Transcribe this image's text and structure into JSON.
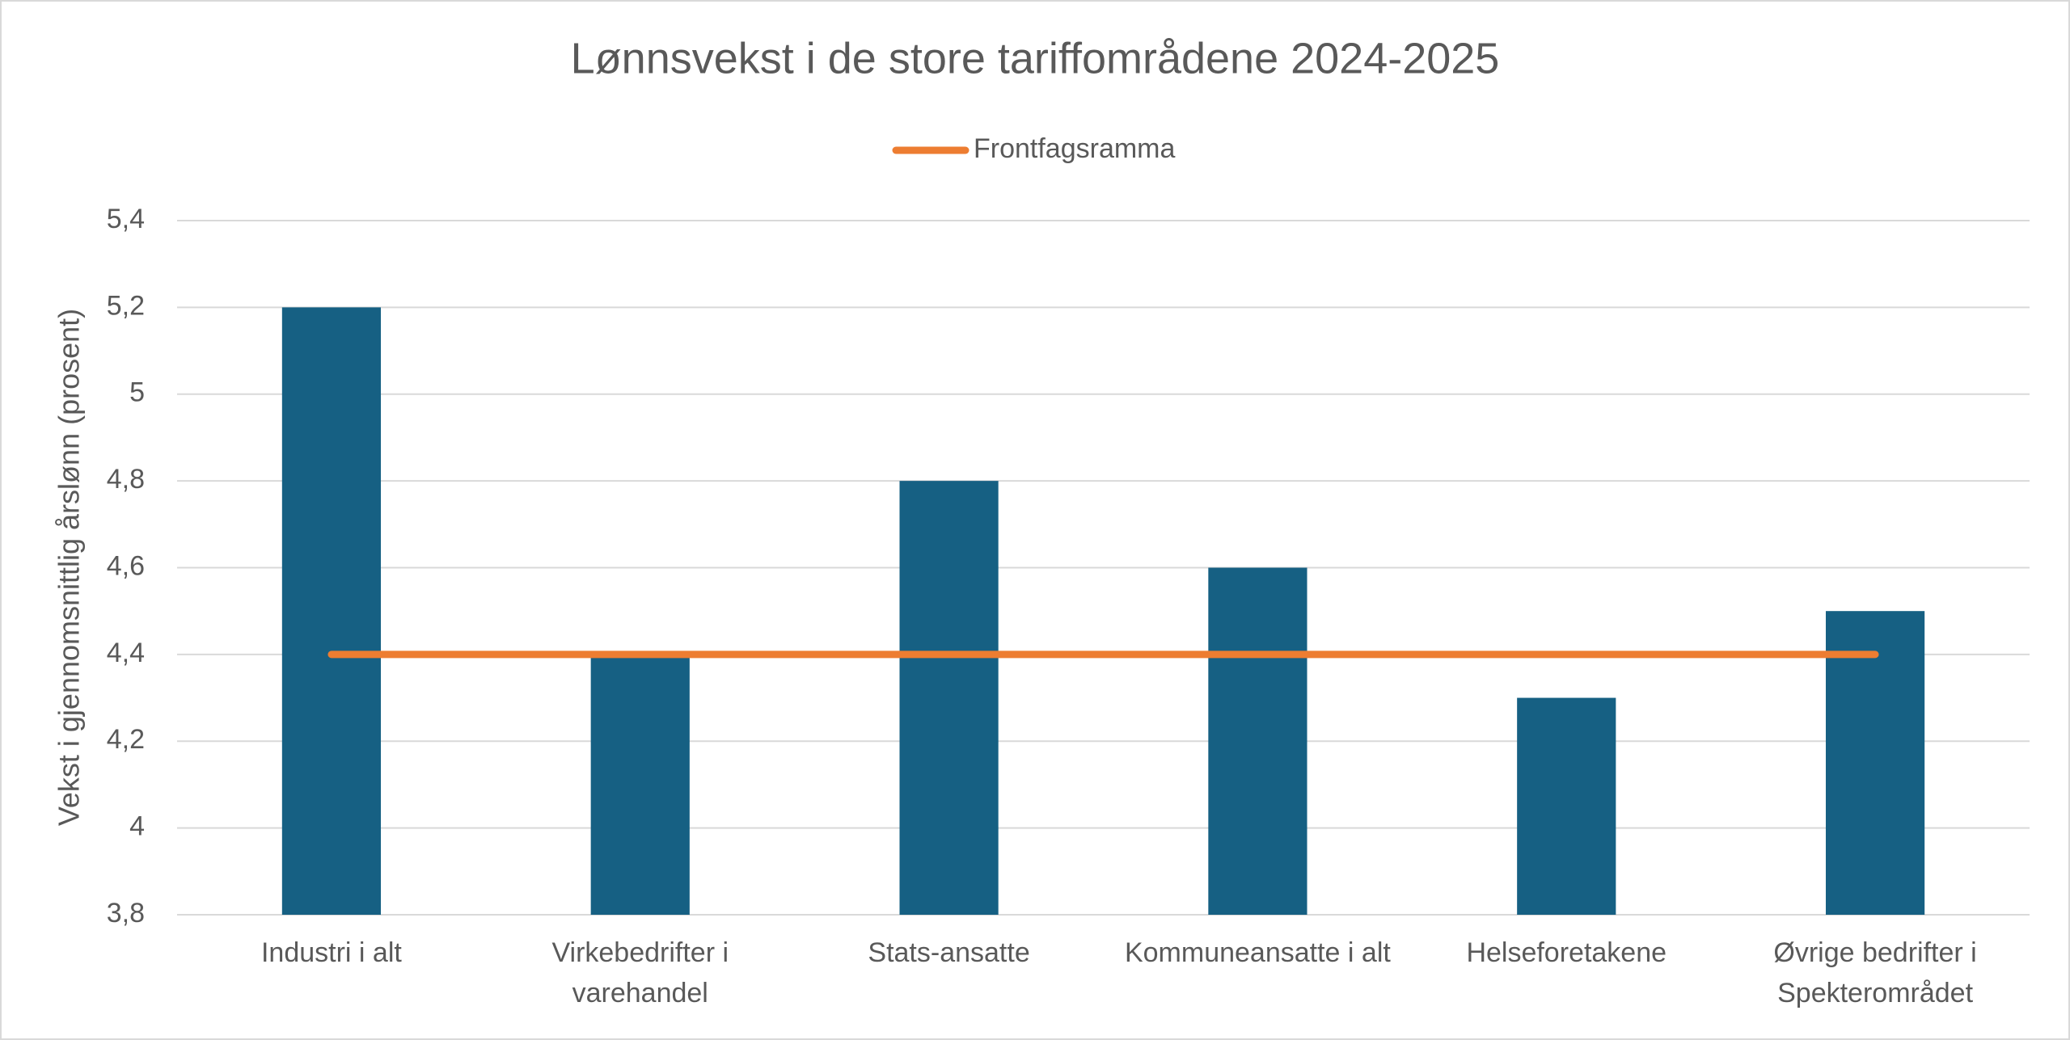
{
  "chart_data": {
    "type": "bar",
    "title": "Lønnsvekst i de store tariffområdene 2024-2025",
    "y_label": "Vekst i gjennomsnittlig årslønn (prosent)",
    "categories": [
      "Industri i alt",
      "Virkebedrifter i varehandel",
      "Stats-ansatte",
      "Kommuneansatte i alt",
      "Helseforetakene",
      "Øvrige bedrifter i Spekterområdet"
    ],
    "values": [
      5.2,
      4.4,
      4.8,
      4.6,
      4.3,
      4.5
    ],
    "color": "#166083",
    "series": [
      {
        "name": "Frontfagsramma",
        "type": "line",
        "color": "#ed7d31",
        "values": [
          4.4,
          4.4,
          4.4,
          4.4,
          4.4,
          4.4
        ]
      }
    ],
    "ylim": [
      3.8,
      5.4
    ],
    "yticks": [
      {
        "value": 3.8,
        "label": "3,8"
      },
      4,
      {
        "value": 4.2,
        "label": "4,2"
      },
      {
        "value": 4.4,
        "label": "4,4"
      },
      {
        "value": 4.6,
        "label": "4,6"
      },
      {
        "value": 4.8,
        "label": "4,8"
      },
      5,
      {
        "value": 5.2,
        "label": "5,2"
      },
      {
        "value": 5.4,
        "label": "5,4"
      }
    ],
    "grid": true,
    "legend": "top"
  }
}
